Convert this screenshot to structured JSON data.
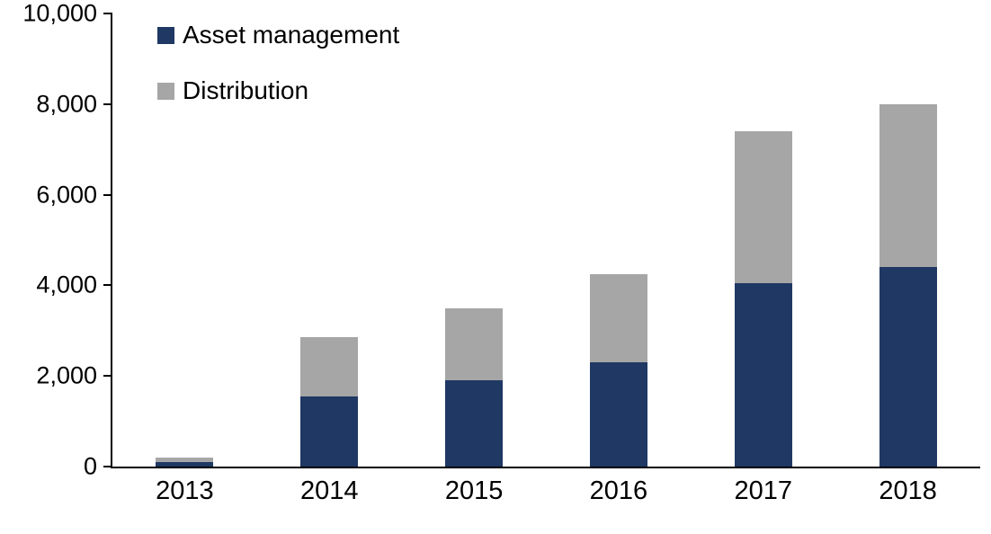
{
  "chart_data": {
    "type": "bar",
    "stacked": true,
    "title": "",
    "xlabel": "",
    "ylabel": "",
    "categories": [
      "2013",
      "2014",
      "2015",
      "2016",
      "2017",
      "2018"
    ],
    "series": [
      {
        "name": "Asset management",
        "color": "#1F3864",
        "values": [
          100,
          1550,
          1900,
          2300,
          4050,
          4400
        ]
      },
      {
        "name": "Distribution",
        "color": "#A6A6A6",
        "values": [
          100,
          1300,
          1600,
          1950,
          3350,
          3600
        ]
      }
    ],
    "totals": [
      200,
      2850,
      3500,
      4250,
      7400,
      8000
    ],
    "ylim": [
      0,
      10000
    ],
    "ytick_interval": 2000,
    "ytick_labels": [
      "0",
      "2,000",
      "4,000",
      "6,000",
      "8,000",
      "10,000"
    ],
    "grid": false,
    "legend_position": "top-left",
    "axis_color": "#000000",
    "background_color": "#FFFFFF"
  }
}
